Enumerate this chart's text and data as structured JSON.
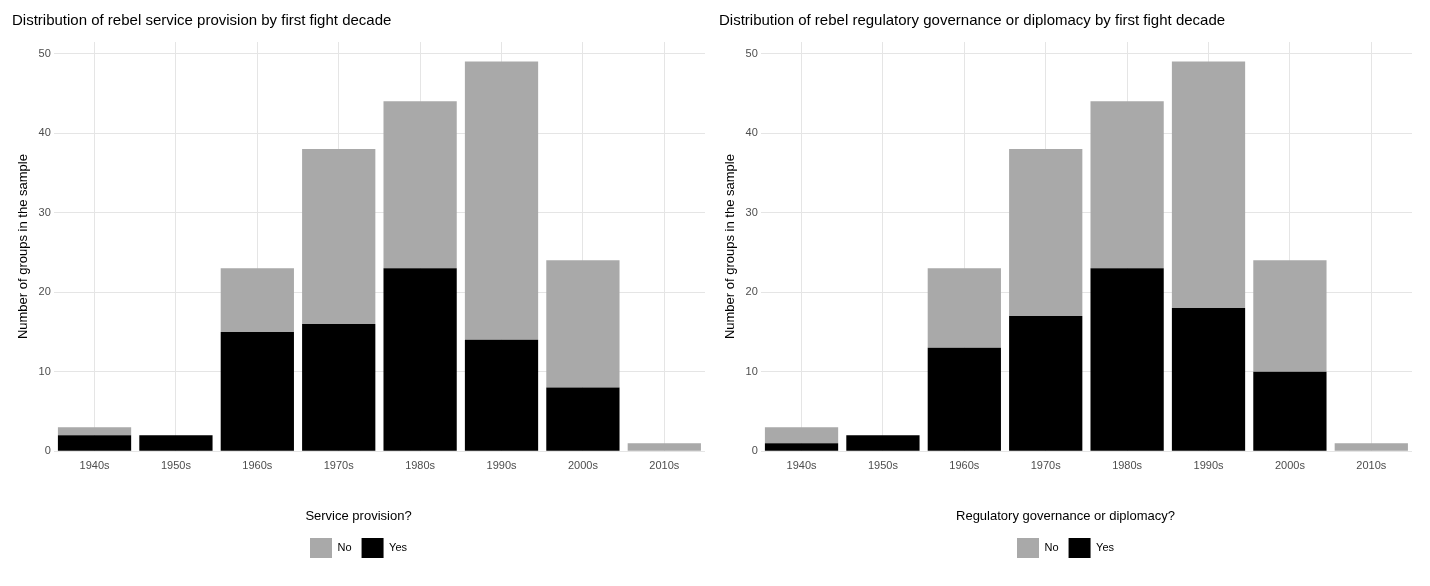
{
  "chart_data": [
    {
      "type": "bar",
      "title": "Distribution of rebel service provision by first fight decade",
      "ylabel": "Number of groups in the sample",
      "legend_title": "Service provision?",
      "categories": [
        "1940s",
        "1950s",
        "1960s",
        "1970s",
        "1980s",
        "1990s",
        "2000s",
        "2010s"
      ],
      "stacked": true,
      "series": [
        {
          "name": "Yes",
          "color": "#000000",
          "values": [
            2,
            2,
            15,
            16,
            23,
            14,
            8,
            0
          ]
        },
        {
          "name": "No",
          "color": "#a9a9a9",
          "values": [
            1,
            0,
            8,
            22,
            21,
            35,
            16,
            1
          ]
        }
      ],
      "ylim": [
        0,
        51.45
      ],
      "yticks": [
        0,
        10,
        20,
        30,
        40,
        50
      ],
      "grid": true,
      "legend": "bottom"
    },
    {
      "type": "bar",
      "title": "Distribution of rebel regulatory governance or diplomacy by first fight decade",
      "ylabel": "Number of groups in the sample",
      "legend_title": "Regulatory governance or diplomacy?",
      "categories": [
        "1940s",
        "1950s",
        "1960s",
        "1970s",
        "1980s",
        "1990s",
        "2000s",
        "2010s"
      ],
      "stacked": true,
      "series": [
        {
          "name": "Yes",
          "color": "#000000",
          "values": [
            1,
            2,
            13,
            17,
            23,
            18,
            10,
            0
          ]
        },
        {
          "name": "No",
          "color": "#a9a9a9",
          "values": [
            2,
            0,
            10,
            21,
            21,
            31,
            14,
            1
          ]
        }
      ],
      "ylim": [
        0,
        51.45
      ],
      "yticks": [
        0,
        10,
        20,
        30,
        40,
        50
      ],
      "grid": true,
      "legend": "bottom"
    }
  ]
}
